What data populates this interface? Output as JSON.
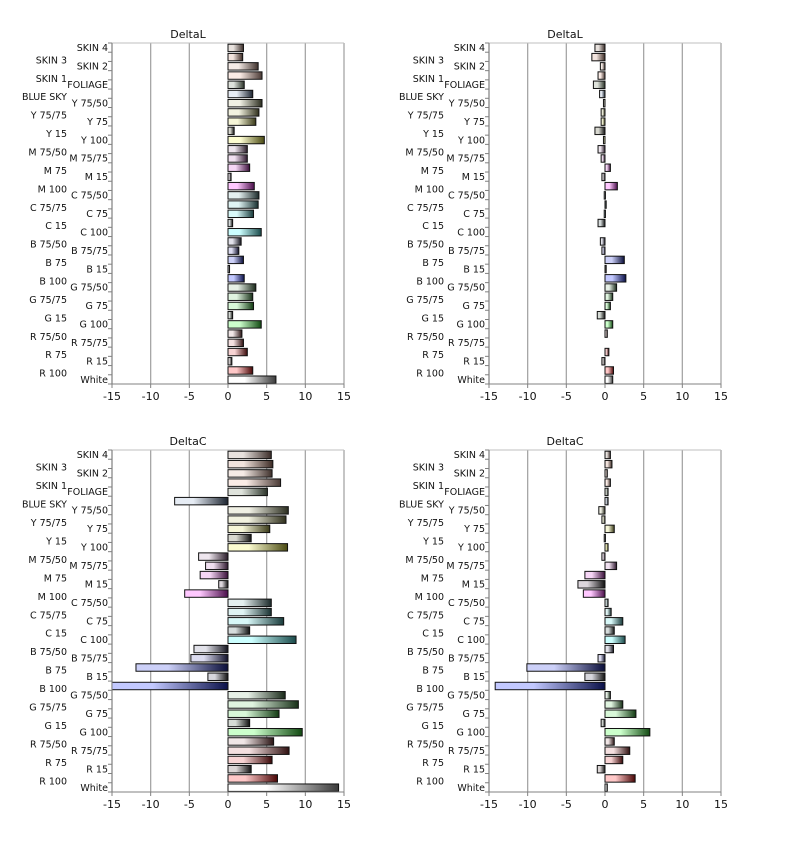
{
  "chart_data": [
    {
      "type": "bar",
      "orientation": "horizontal",
      "title": "DeltaL",
      "position": "top-left",
      "xlim": [
        -15,
        15
      ],
      "xticks": [
        -15,
        -10,
        -5,
        0,
        5,
        10,
        15
      ],
      "grid": true,
      "categories": [
        "SKIN 4",
        "SKIN 3",
        "SKIN 2",
        "SKIN 1",
        "FOLIAGE",
        "BLUE SKY",
        "Y 75/50",
        "Y 75/75",
        "Y 75",
        "Y 15",
        "Y 100",
        "M 75/50",
        "M 75/75",
        "M 75",
        "M 15",
        "M 100",
        "C 75/50",
        "C 75/75",
        "C 75",
        "C 15",
        "C 100",
        "B 75/50",
        "B 75/75",
        "B 75",
        "B 15",
        "B 100",
        "G 75/50",
        "G 75/75",
        "G 75",
        "G 15",
        "G 100",
        "R 75/50",
        "R 75/75",
        "R 75",
        "R 15",
        "R 100",
        "White"
      ],
      "values": [
        2.0,
        1.9,
        3.9,
        4.4,
        2.1,
        3.2,
        4.4,
        4.0,
        3.6,
        0.8,
        4.7,
        2.5,
        2.5,
        2.8,
        0.4,
        3.4,
        4.0,
        3.9,
        3.3,
        0.6,
        4.3,
        1.7,
        1.4,
        2.0,
        0.2,
        2.1,
        3.6,
        3.2,
        3.3,
        0.6,
        4.3,
        1.8,
        2.0,
        2.5,
        0.5,
        3.2,
        6.2
      ]
    },
    {
      "type": "bar",
      "orientation": "horizontal",
      "title": "DeltaL",
      "position": "top-right",
      "xlim": [
        -15,
        15
      ],
      "xticks": [
        -15,
        -10,
        -5,
        0,
        5,
        10,
        15
      ],
      "grid": true,
      "categories": [
        "SKIN 4",
        "SKIN 3",
        "SKIN 2",
        "SKIN 1",
        "FOLIAGE",
        "BLUE SKY",
        "Y 75/50",
        "Y 75/75",
        "Y 75",
        "Y 15",
        "Y 100",
        "M 75/50",
        "M 75/75",
        "M 75",
        "M 15",
        "M 100",
        "C 75/50",
        "C 75/75",
        "C 75",
        "C 15",
        "C 100",
        "B 75/50",
        "B 75/75",
        "B 75",
        "B 15",
        "B 100",
        "G 75/50",
        "G 75/75",
        "G 75",
        "G 15",
        "G 100",
        "R 75/50",
        "R 75/75",
        "R 75",
        "R 15",
        "R 100",
        "White"
      ],
      "values": [
        -1.3,
        -1.7,
        -0.6,
        -0.9,
        -1.5,
        -0.7,
        -0.2,
        -0.5,
        -0.5,
        -1.3,
        -0.2,
        -0.9,
        -0.5,
        0.7,
        -0.4,
        1.6,
        -0.1,
        0.1,
        -0.1,
        -0.9,
        0.0,
        -0.6,
        -0.4,
        2.5,
        0.1,
        2.7,
        1.5,
        1.0,
        0.7,
        -1.0,
        1.0,
        0.3,
        0.0,
        0.5,
        -0.4,
        1.1,
        1.0
      ]
    },
    {
      "type": "bar",
      "orientation": "horizontal",
      "title": "DeltaC",
      "position": "bottom-left",
      "xlim": [
        -15,
        15
      ],
      "xticks": [
        -15,
        -10,
        -5,
        0,
        5,
        10,
        15
      ],
      "grid": true,
      "categories": [
        "SKIN 4",
        "SKIN 3",
        "SKIN 2",
        "SKIN 1",
        "FOLIAGE",
        "BLUE SKY",
        "Y 75/50",
        "Y 75/75",
        "Y 75",
        "Y 15",
        "Y 100",
        "M 75/50",
        "M 75/75",
        "M 75",
        "M 15",
        "M 100",
        "C 75/50",
        "C 75/75",
        "C 75",
        "C 15",
        "C 100",
        "B 75/50",
        "B 75/75",
        "B 75",
        "B 15",
        "B 100",
        "G 75/50",
        "G 75/75",
        "G 75",
        "G 15",
        "G 100",
        "R 75/50",
        "R 75/75",
        "R 75",
        "R 15",
        "R 100",
        "White"
      ],
      "values": [
        5.6,
        5.8,
        5.7,
        6.8,
        5.1,
        -6.9,
        7.8,
        7.5,
        5.4,
        3.0,
        7.7,
        -3.8,
        -2.9,
        -3.6,
        -1.2,
        -5.6,
        5.6,
        5.6,
        7.2,
        2.8,
        8.8,
        -4.4,
        -4.8,
        -11.9,
        -2.6,
        -15.0,
        7.4,
        9.1,
        6.6,
        2.8,
        9.6,
        5.9,
        7.9,
        5.7,
        3.0,
        6.4,
        14.3
      ]
    },
    {
      "type": "bar",
      "orientation": "horizontal",
      "title": "DeltaC",
      "position": "bottom-right",
      "xlim": [
        -15,
        15
      ],
      "xticks": [
        -15,
        -10,
        -5,
        0,
        5,
        10,
        15
      ],
      "grid": true,
      "categories": [
        "SKIN 4",
        "SKIN 3",
        "SKIN 2",
        "SKIN 1",
        "FOLIAGE",
        "BLUE SKY",
        "Y 75/50",
        "Y 75/75",
        "Y 75",
        "Y 15",
        "Y 100",
        "M 75/50",
        "M 75/75",
        "M 75",
        "M 15",
        "M 100",
        "C 75/50",
        "C 75/75",
        "C 75",
        "C 15",
        "C 100",
        "B 75/50",
        "B 75/75",
        "B 75",
        "B 15",
        "B 100",
        "G 75/50",
        "G 75/75",
        "G 75",
        "G 15",
        "G 100",
        "R 75/50",
        "R 75/75",
        "R 75",
        "R 15",
        "R 100",
        "White"
      ],
      "values": [
        0.7,
        0.9,
        0.3,
        0.7,
        0.4,
        0.4,
        -0.8,
        -0.4,
        1.2,
        -0.1,
        0.4,
        -0.4,
        1.5,
        -2.6,
        -3.5,
        -2.8,
        0.4,
        0.8,
        2.3,
        1.2,
        2.6,
        1.1,
        -0.9,
        -10.1,
        -2.6,
        -14.2,
        0.7,
        2.3,
        4.0,
        -0.5,
        5.8,
        1.2,
        3.2,
        2.3,
        -1.0,
        3.9,
        0.3
      ]
    }
  ],
  "bar_colors": {
    "SKIN 4": [
      "#e8e2de",
      "#3a2c28"
    ],
    "SKIN 3": [
      "#f2e4de",
      "#3c2a24"
    ],
    "SKIN 2": [
      "#f5ebe6",
      "#3e302b"
    ],
    "SKIN 1": [
      "#fbece6",
      "#4a3a35"
    ],
    "FOLIAGE": [
      "#dfe3dc",
      "#2a3328"
    ],
    "BLUE SKY": [
      "#e6ecf4",
      "#1c2430"
    ],
    "Y 75/50": [
      "#f0f0e4",
      "#2c2e20"
    ],
    "Y 75/75": [
      "#f2f2e0",
      "#30301c"
    ],
    "Y 75": [
      "#f6f6d8",
      "#3a3a18"
    ],
    "Y 15": [
      "#d8d8d0",
      "#111111"
    ],
    "Y 100": [
      "#fcfcd0",
      "#4a4a12"
    ],
    "M 75/50": [
      "#eee6ee",
      "#2a1c2a"
    ],
    "M 75/75": [
      "#f0e0f0",
      "#2e182e"
    ],
    "M 75": [
      "#f6d6f6",
      "#3a103a"
    ],
    "M 15": [
      "#dcd6dc",
      "#111111"
    ],
    "M 100": [
      "#ffc8ff",
      "#4a0e4a"
    ],
    "C 75/50": [
      "#e4f0f0",
      "#1c2a2a"
    ],
    "C 75/75": [
      "#e0f4f4",
      "#183030"
    ],
    "C 75": [
      "#d8f8f8",
      "#183a3a"
    ],
    "C 15": [
      "#d6dcdc",
      "#111111"
    ],
    "C 100": [
      "#ccffff",
      "#1a4a4a"
    ],
    "B 75/50": [
      "#e2e2ea",
      "#14141e"
    ],
    "B 75/75": [
      "#dcdcf0",
      "#10102a"
    ],
    "B 75": [
      "#ccd0f8",
      "#0a0e3a"
    ],
    "B 15": [
      "#d6d6dc",
      "#111111"
    ],
    "B 100": [
      "#c2c8ff",
      "#0a1048"
    ],
    "G 75/50": [
      "#e6f0e6",
      "#1a2a1a"
    ],
    "G 75/75": [
      "#e0f4e0",
      "#183018"
    ],
    "G 75": [
      "#d8f8d8",
      "#123a12"
    ],
    "G 15": [
      "#d6dcd6",
      "#111111"
    ],
    "G 100": [
      "#ccffcc",
      "#124a12"
    ],
    "R 75/50": [
      "#f0e6e6",
      "#2a1414"
    ],
    "R 75/75": [
      "#f4e0e0",
      "#301010"
    ],
    "R 75": [
      "#f8d4d4",
      "#3a0808"
    ],
    "R 15": [
      "#dcd6d6",
      "#111111"
    ],
    "R 100": [
      "#ffc8c8",
      "#4a0606"
    ],
    "White": [
      "#ffffff",
      "#3a3a3a"
    ]
  }
}
